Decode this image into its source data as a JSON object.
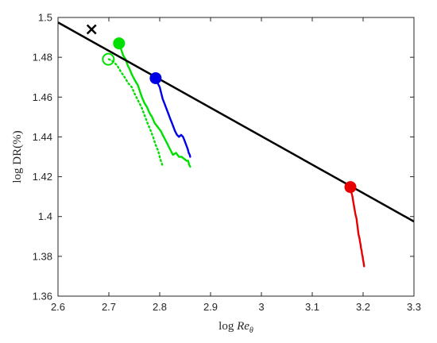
{
  "chart_data": {
    "type": "line",
    "title": "",
    "xlabel_prefix": "log ",
    "xlabel_var": "Re",
    "xlabel_sub": "θ",
    "ylabel": "log DR(%)",
    "xlim": [
      2.6,
      3.3
    ],
    "ylim": [
      1.36,
      1.5
    ],
    "xticks": [
      2.6,
      2.7,
      2.8,
      2.9,
      3.0,
      3.1,
      3.2,
      3.3
    ],
    "xtick_labels": [
      "2.6",
      "2.7",
      "2.8",
      "2.9",
      "3",
      "3.1",
      "3.2",
      "3.3"
    ],
    "yticks": [
      1.36,
      1.38,
      1.4,
      1.42,
      1.44,
      1.46,
      1.48,
      1.5
    ],
    "ytick_labels": [
      "1.36",
      "1.38",
      "1.4",
      "1.42",
      "1.44",
      "1.46",
      "1.48",
      "1.5"
    ],
    "grid": false,
    "legend": "none",
    "fit_line": {
      "x": [
        2.6,
        3.3
      ],
      "y": [
        1.4975,
        1.3975
      ],
      "color": "#000000"
    },
    "series": [
      {
        "color": "#00e000",
        "style": "solid",
        "x": [
          2.72,
          2.724,
          2.728,
          2.733,
          2.737,
          2.741,
          2.744,
          2.748,
          2.752,
          2.757,
          2.761,
          2.765,
          2.77,
          2.775,
          2.78,
          2.785,
          2.79,
          2.796,
          2.802,
          2.808,
          2.814,
          2.82,
          2.826,
          2.832,
          2.838,
          2.843,
          2.848,
          2.853,
          2.856,
          2.858,
          2.86
        ],
        "y": [
          1.487,
          1.484,
          1.481,
          1.479,
          1.476,
          1.474,
          1.472,
          1.47,
          1.468,
          1.466,
          1.463,
          1.46,
          1.457,
          1.455,
          1.452,
          1.45,
          1.447,
          1.445,
          1.443,
          1.44,
          1.437,
          1.434,
          1.431,
          1.432,
          1.43,
          1.43,
          1.429,
          1.428,
          1.428,
          1.426,
          1.425
        ]
      },
      {
        "color": "#00e000",
        "style": "dotted",
        "x": [
          2.7,
          2.708,
          2.716,
          2.723,
          2.731,
          2.738,
          2.745,
          2.752,
          2.758,
          2.764,
          2.77,
          2.776,
          2.781,
          2.787,
          2.792,
          2.797,
          2.801,
          2.805
        ],
        "y": [
          1.479,
          1.478,
          1.476,
          1.473,
          1.47,
          1.467,
          1.465,
          1.461,
          1.458,
          1.455,
          1.451,
          1.447,
          1.444,
          1.44,
          1.436,
          1.433,
          1.429,
          1.426
        ]
      },
      {
        "color": "#0000e6",
        "style": "solid",
        "x": [
          2.792,
          2.796,
          2.8,
          2.803,
          2.806,
          2.809,
          2.812,
          2.815,
          2.818,
          2.821,
          2.824,
          2.827,
          2.83,
          2.834,
          2.838,
          2.842,
          2.846,
          2.849,
          2.852,
          2.855,
          2.857,
          2.859,
          2.86
        ],
        "y": [
          1.469,
          1.467,
          1.465,
          1.462,
          1.459,
          1.457,
          1.455,
          1.453,
          1.451,
          1.449,
          1.447,
          1.445,
          1.443,
          1.441,
          1.44,
          1.441,
          1.44,
          1.438,
          1.436,
          1.434,
          1.432,
          1.431,
          1.43
        ]
      },
      {
        "color": "#e60000",
        "style": "solid",
        "x": [
          3.174,
          3.177,
          3.179,
          3.181,
          3.183,
          3.185,
          3.187,
          3.188,
          3.189,
          3.19,
          3.191,
          3.193,
          3.194,
          3.195,
          3.196,
          3.197,
          3.198,
          3.199,
          3.2,
          3.201,
          3.202
        ],
        "y": [
          1.415,
          1.412,
          1.41,
          1.407,
          1.404,
          1.401,
          1.399,
          1.397,
          1.395,
          1.393,
          1.391,
          1.389,
          1.387,
          1.386,
          1.384,
          1.383,
          1.381,
          1.38,
          1.378,
          1.377,
          1.375
        ]
      }
    ],
    "markers": [
      {
        "shape": "filled-circle",
        "x": 2.72,
        "y": 1.487,
        "color": "#00e000"
      },
      {
        "shape": "open-circle",
        "x": 2.699,
        "y": 1.479,
        "color": "#00e000"
      },
      {
        "shape": "filled-circle",
        "x": 2.792,
        "y": 1.4695,
        "color": "#0000e6"
      },
      {
        "shape": "filled-circle",
        "x": 3.175,
        "y": 1.4148,
        "color": "#e60000"
      },
      {
        "shape": "cross",
        "x": 2.666,
        "y": 1.494,
        "color": "#000000"
      }
    ]
  }
}
